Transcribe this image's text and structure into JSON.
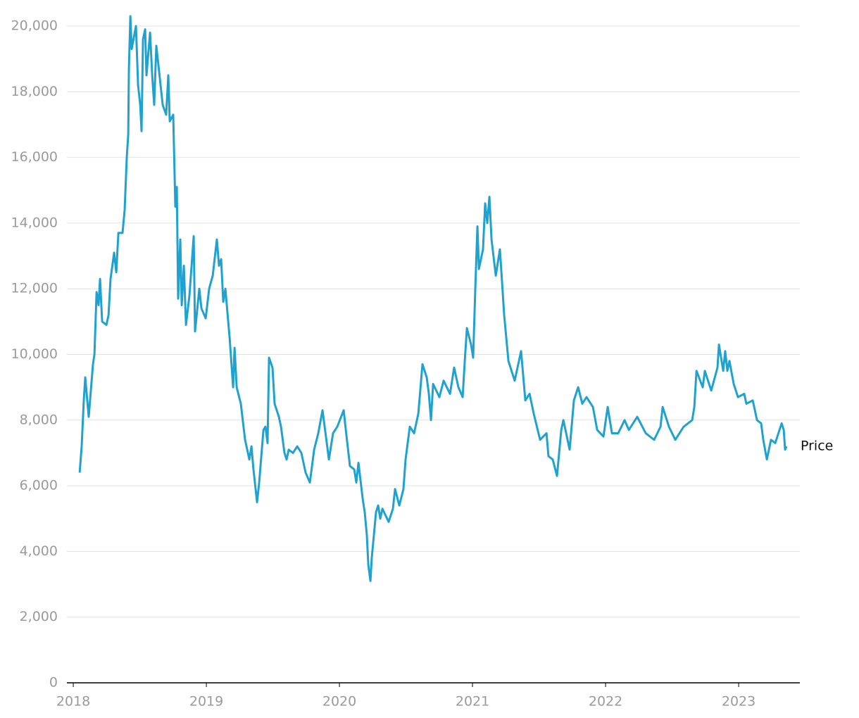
{
  "chart_data": {
    "type": "line",
    "x": [
      2018.048,
      2018.063,
      2018.079,
      2018.09,
      2018.116,
      2018.148,
      2018.159,
      2018.175,
      2018.19,
      2018.201,
      2018.217,
      2018.249,
      2018.265,
      2018.28,
      2018.307,
      2018.323,
      2018.339,
      2018.37,
      2018.386,
      2018.402,
      2018.413,
      2018.418,
      2018.429,
      2018.439,
      2018.471,
      2018.487,
      2018.503,
      2018.513,
      2018.524,
      2018.54,
      2018.55,
      2018.577,
      2018.593,
      2018.608,
      2018.624,
      2018.656,
      2018.672,
      2018.698,
      2018.714,
      2018.725,
      2018.751,
      2018.767,
      2018.778,
      2018.788,
      2018.804,
      2018.815,
      2018.831,
      2018.847,
      2018.873,
      2018.905,
      2018.915,
      2018.947,
      2018.963,
      2018.995,
      2019.021,
      2019.048,
      2019.079,
      2019.095,
      2019.111,
      2019.127,
      2019.143,
      2019.175,
      2019.201,
      2019.212,
      2019.228,
      2019.259,
      2019.291,
      2019.323,
      2019.339,
      2019.354,
      2019.381,
      2019.397,
      2019.429,
      2019.444,
      2019.46,
      2019.471,
      2019.497,
      2019.513,
      2019.545,
      2019.561,
      2019.587,
      2019.603,
      2019.619,
      2019.651,
      2019.683,
      2019.714,
      2019.746,
      2019.778,
      2019.81,
      2019.841,
      2019.873,
      2019.905,
      2019.921,
      2019.952,
      2019.984,
      2020.032,
      2020.048,
      2020.079,
      2020.111,
      2020.127,
      2020.143,
      2020.175,
      2020.19,
      2020.206,
      2020.217,
      2020.233,
      2020.243,
      2020.275,
      2020.291,
      2020.307,
      2020.323,
      2020.37,
      2020.402,
      2020.418,
      2020.45,
      2020.481,
      2020.497,
      2020.529,
      2020.561,
      2020.593,
      2020.624,
      2020.656,
      2020.672,
      2020.688,
      2020.704,
      2020.751,
      2020.783,
      2020.831,
      2020.862,
      2020.894,
      2020.926,
      2020.942,
      2020.958,
      2020.989,
      2021.005,
      2021.021,
      2021.037,
      2021.048,
      2021.079,
      2021.095,
      2021.111,
      2021.127,
      2021.143,
      2021.175,
      2021.206,
      2021.238,
      2021.27,
      2021.317,
      2021.365,
      2021.397,
      2021.429,
      2021.46,
      2021.508,
      2021.556,
      2021.571,
      2021.603,
      2021.635,
      2021.667,
      2021.683,
      2021.73,
      2021.762,
      2021.794,
      2021.825,
      2021.857,
      2021.905,
      2021.937,
      2021.984,
      2022.016,
      2022.048,
      2022.095,
      2022.143,
      2022.175,
      2022.238,
      2022.302,
      2022.365,
      2022.413,
      2022.429,
      2022.476,
      2022.524,
      2022.587,
      2022.651,
      2022.667,
      2022.683,
      2022.73,
      2022.746,
      2022.794,
      2022.841,
      2022.852,
      2022.884,
      2022.899,
      2022.915,
      2022.931,
      2022.963,
      2022.995,
      2023.042,
      2023.058,
      2023.106,
      2023.138,
      2023.169,
      2023.185,
      2023.212,
      2023.243,
      2023.275,
      2023.323,
      2023.339,
      2023.349,
      2023.36
    ],
    "series": [
      {
        "name": "Price",
        "color": "#1fa2cf",
        "values": [
          6400,
          7200,
          8600,
          9300,
          8100,
          9700,
          10000,
          11900,
          11500,
          12300,
          11000,
          10900,
          11200,
          12300,
          13100,
          12500,
          13700,
          13700,
          14400,
          16000,
          16700,
          18700,
          20300,
          19300,
          20000,
          18200,
          17600,
          16800,
          19600,
          19900,
          18500,
          19800,
          18500,
          17600,
          19400,
          18200,
          17600,
          17300,
          18500,
          17100,
          17300,
          14500,
          15100,
          11700,
          13500,
          11500,
          12700,
          10900,
          11800,
          13600,
          10700,
          12000,
          11400,
          11100,
          12000,
          12400,
          13500,
          12700,
          12900,
          11600,
          12000,
          10500,
          9000,
          10200,
          9000,
          8500,
          7400,
          6800,
          7200,
          6500,
          5500,
          6100,
          7700,
          7800,
          7300,
          9900,
          9600,
          8500,
          8100,
          7800,
          7000,
          6800,
          7100,
          7000,
          7200,
          7000,
          6400,
          6100,
          7100,
          7600,
          8300,
          7300,
          6800,
          7600,
          7800,
          8300,
          7700,
          6600,
          6500,
          6100,
          6700,
          5600,
          5200,
          4500,
          3600,
          3100,
          3800,
          5200,
          5400,
          5000,
          5300,
          4900,
          5300,
          5900,
          5400,
          5900,
          6800,
          7800,
          7600,
          8200,
          9700,
          9300,
          8800,
          8000,
          9100,
          8700,
          9200,
          8800,
          9600,
          9000,
          8700,
          9800,
          10800,
          10300,
          9900,
          12000,
          13900,
          12600,
          13200,
          14600,
          14000,
          14800,
          13500,
          12400,
          13200,
          11200,
          9800,
          9200,
          10100,
          8600,
          8800,
          8200,
          7400,
          7600,
          6900,
          6800,
          6300,
          7700,
          8000,
          7100,
          8600,
          9000,
          8500,
          8700,
          8400,
          7700,
          7500,
          8400,
          7600,
          7600,
          8000,
          7700,
          8100,
          7600,
          7400,
          7800,
          8400,
          7800,
          7400,
          7800,
          8000,
          8400,
          9500,
          9000,
          9500,
          8900,
          9600,
          10300,
          9500,
          10100,
          9500,
          9800,
          9100,
          8700,
          8800,
          8500,
          8600,
          8000,
          7900,
          7400,
          6800,
          7400,
          7300,
          7900,
          7700,
          7100,
          7200
        ]
      }
    ],
    "xlim": [
      2017.952,
      2023.46
    ],
    "xticks": [
      2018,
      2019,
      2020,
      2021,
      2022,
      2023
    ],
    "ylim": [
      0,
      20000
    ],
    "yticks": [
      0,
      {
        "value": 2000,
        "label": "2,000"
      },
      {
        "value": 4000,
        "label": "4,000"
      },
      {
        "value": 6000,
        "label": "6,000"
      },
      {
        "value": 8000,
        "label": "8,000"
      },
      {
        "value": 10000,
        "label": "10,000"
      },
      {
        "value": 12000,
        "label": "12,000"
      },
      {
        "value": 14000,
        "label": "14,000"
      },
      {
        "value": 16000,
        "label": "16,000"
      },
      {
        "value": 18000,
        "label": "18,000"
      },
      {
        "value": 20000,
        "label": "20,000"
      }
    ],
    "grid": true
  }
}
